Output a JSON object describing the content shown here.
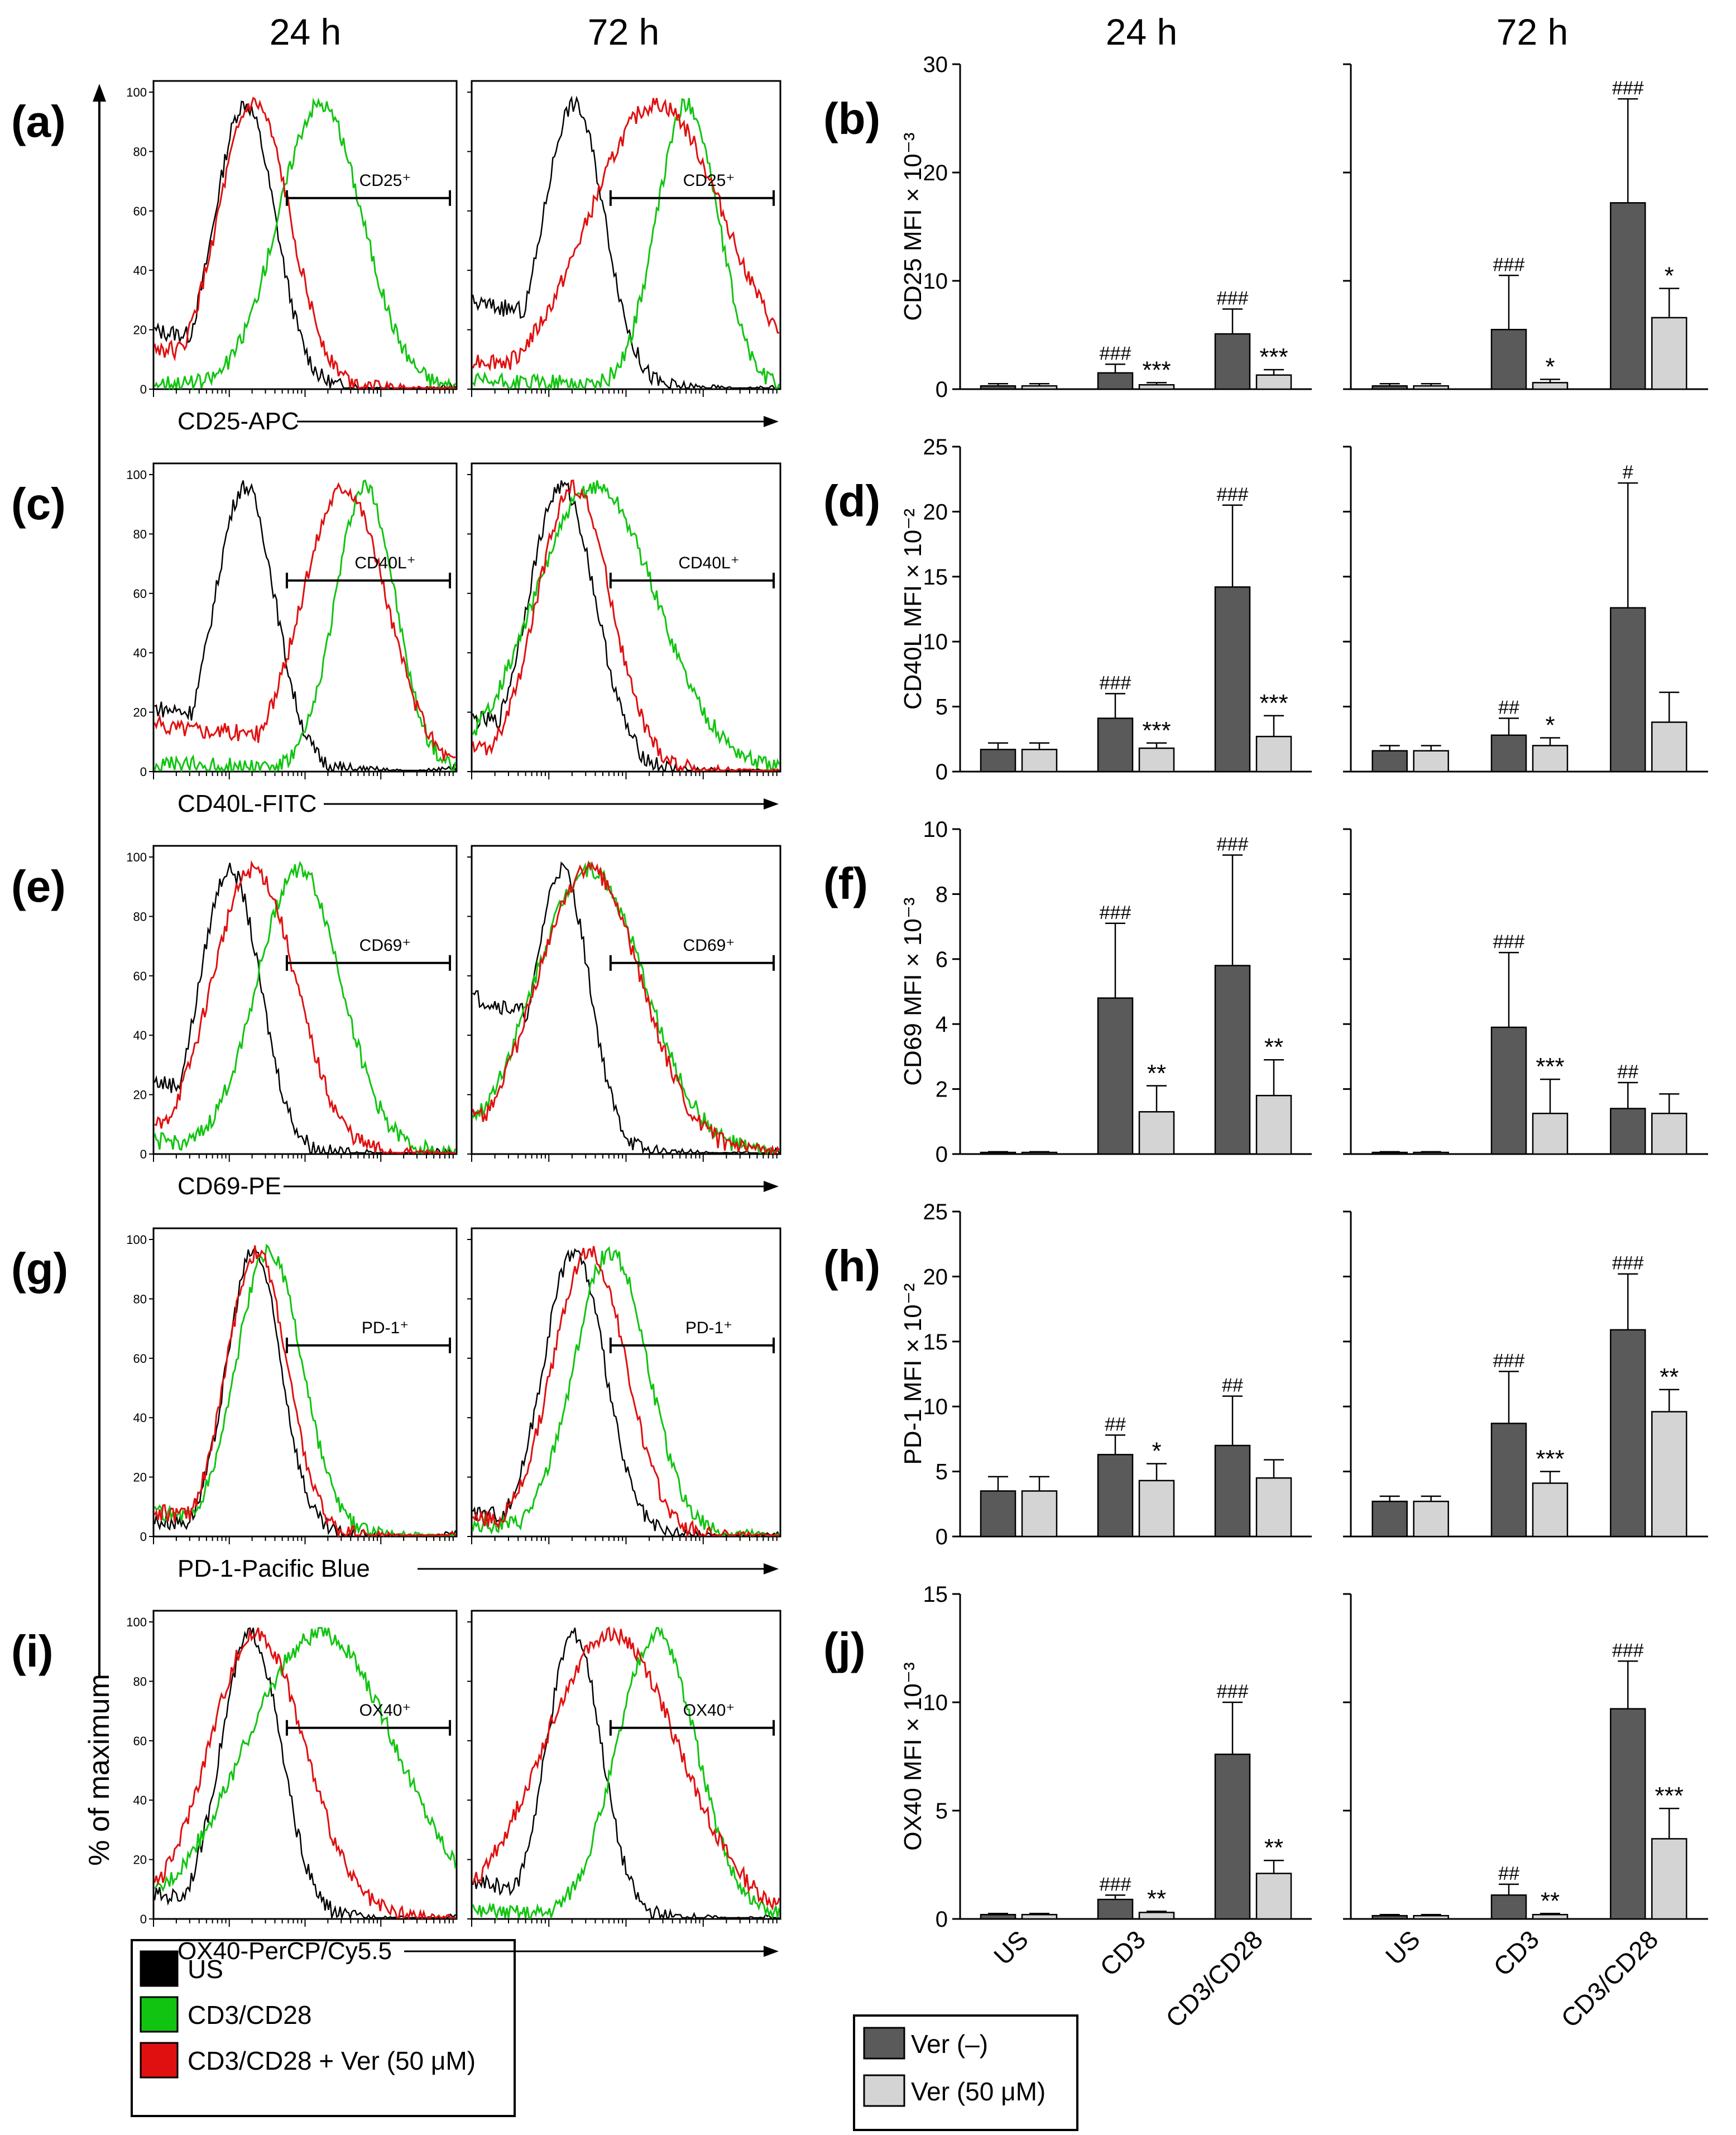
{
  "col_headers": {
    "hist_24": "24 h",
    "hist_72": "72 h",
    "bar_24": "24 h",
    "bar_72": "72 h"
  },
  "colors": {
    "us": "#000000",
    "cd3cd28": "#11c411",
    "ver": "#e01010",
    "bar_dark": "#5a5a5a",
    "bar_light": "#d4d4d4"
  },
  "hist_ylabel": "% of maximum",
  "hist_yticks": [
    "0",
    "20",
    "40",
    "60",
    "80",
    "100"
  ],
  "bar_xcats": [
    "US",
    "CD3",
    "CD3/CD28"
  ],
  "legend_hist": [
    {
      "label": "US",
      "color": "#000000"
    },
    {
      "label": "CD3/CD28",
      "color": "#11c411"
    },
    {
      "label": "CD3/CD28 + Ver (50 μM)",
      "color": "#e01010"
    }
  ],
  "legend_bar": [
    {
      "label": "Ver (–)",
      "color": "#5a5a5a"
    },
    {
      "label": "Ver (50 μM)",
      "color": "#d4d4d4"
    }
  ],
  "histograms": [
    {
      "panel": "(a)",
      "xlabel": "CD25-APC",
      "gate": [
        "CD25⁺",
        "CD25⁺"
      ]
    },
    {
      "panel": "(c)",
      "xlabel": "CD40L-FITC",
      "gate": [
        "CD40L⁺",
        "CD40L⁺"
      ]
    },
    {
      "panel": "(e)",
      "xlabel": "CD69-PE",
      "gate": [
        "CD69⁺",
        "CD69⁺"
      ]
    },
    {
      "panel": "(g)",
      "xlabel": "PD-1-Pacific Blue",
      "gate": [
        "PD-1⁺",
        "PD-1⁺"
      ]
    },
    {
      "panel": "(i)",
      "xlabel": "OX40-PerCP/Cy5.5",
      "gate": [
        "OX40⁺",
        "OX40⁺"
      ]
    }
  ],
  "chart_data": [
    {
      "type": "bar",
      "panel": "(b)",
      "ylabel": "CD25 MFI × 10⁻³",
      "ylim": [
        0,
        30
      ],
      "yticks": [
        "0",
        "10",
        "20",
        "30"
      ],
      "categories": [
        "US",
        "CD3",
        "CD3/CD28"
      ],
      "series": [
        {
          "name": "Ver (–) 24 h",
          "values": [
            0.3,
            1.5,
            5.1
          ],
          "err": [
            0.2,
            0.8,
            2.3
          ],
          "marks": [
            "",
            "###",
            "###"
          ]
        },
        {
          "name": "Ver (50 μM) 24 h",
          "values": [
            0.3,
            0.4,
            1.3
          ],
          "err": [
            0.2,
            0.2,
            0.5
          ],
          "marks": [
            "",
            "***",
            "***"
          ]
        },
        {
          "name": "Ver (–) 72 h",
          "values": [
            0.3,
            5.5,
            17.2
          ],
          "err": [
            0.2,
            5.0,
            9.6
          ],
          "marks": [
            "",
            "###",
            "###"
          ]
        },
        {
          "name": "Ver (50 μM) 72 h",
          "values": [
            0.3,
            0.6,
            6.6
          ],
          "err": [
            0.2,
            0.3,
            2.7
          ],
          "marks": [
            "",
            "*",
            "*"
          ]
        }
      ]
    },
    {
      "type": "bar",
      "panel": "(d)",
      "ylabel": "CD40L MFI × 10⁻²",
      "ylim": [
        0,
        25
      ],
      "yticks": [
        "0",
        "5",
        "10",
        "15",
        "20",
        "25"
      ],
      "categories": [
        "US",
        "CD3",
        "CD3/CD28"
      ],
      "series": [
        {
          "name": "Ver (–) 24 h",
          "values": [
            1.7,
            4.1,
            14.2
          ],
          "err": [
            0.5,
            1.9,
            6.3
          ],
          "marks": [
            "",
            "###",
            "###"
          ]
        },
        {
          "name": "Ver (50 μM) 24 h",
          "values": [
            1.7,
            1.8,
            2.7
          ],
          "err": [
            0.5,
            0.4,
            1.6
          ],
          "marks": [
            "",
            "***",
            "***"
          ]
        },
        {
          "name": "Ver (–) 72 h",
          "values": [
            1.6,
            2.8,
            12.6
          ],
          "err": [
            0.4,
            1.3,
            9.6
          ],
          "marks": [
            "",
            "##",
            "#"
          ]
        },
        {
          "name": "Ver (50 μM) 72 h",
          "values": [
            1.6,
            2.0,
            3.8
          ],
          "err": [
            0.4,
            0.6,
            2.3
          ],
          "marks": [
            "",
            "*",
            ""
          ]
        }
      ]
    },
    {
      "type": "bar",
      "panel": "(f)",
      "ylabel": "CD69 MFI × 10⁻³",
      "ylim": [
        0,
        10
      ],
      "yticks": [
        "0",
        "2",
        "4",
        "6",
        "8",
        "10"
      ],
      "categories": [
        "US",
        "CD3",
        "CD3/CD28"
      ],
      "series": [
        {
          "name": "Ver (–) 24 h",
          "values": [
            0.05,
            4.8,
            5.8
          ],
          "err": [
            0.02,
            2.3,
            3.4
          ],
          "marks": [
            "",
            "###",
            "###"
          ]
        },
        {
          "name": "Ver (50 μM) 24 h",
          "values": [
            0.05,
            1.3,
            1.8
          ],
          "err": [
            0.02,
            0.8,
            1.1
          ],
          "marks": [
            "",
            "**",
            "**"
          ]
        },
        {
          "name": "Ver (–) 72 h",
          "values": [
            0.05,
            3.9,
            1.4
          ],
          "err": [
            0.02,
            2.3,
            0.8
          ],
          "marks": [
            "",
            "###",
            "##"
          ]
        },
        {
          "name": "Ver (50 μM) 72 h",
          "values": [
            0.05,
            1.25,
            1.25
          ],
          "err": [
            0.02,
            1.05,
            0.6
          ],
          "marks": [
            "",
            "***",
            ""
          ]
        }
      ]
    },
    {
      "type": "bar",
      "panel": "(h)",
      "ylabel": "PD-1 MFI × 10⁻²",
      "ylim": [
        0,
        25
      ],
      "yticks": [
        "0",
        "5",
        "10",
        "15",
        "20",
        "25"
      ],
      "categories": [
        "US",
        "CD3",
        "CD3/CD28"
      ],
      "series": [
        {
          "name": "Ver (–) 24 h",
          "values": [
            3.5,
            6.3,
            7.0
          ],
          "err": [
            1.1,
            1.5,
            3.8
          ],
          "marks": [
            "",
            "##",
            "##"
          ]
        },
        {
          "name": "Ver (50 μM) 24 h",
          "values": [
            3.5,
            4.3,
            4.5
          ],
          "err": [
            1.1,
            1.3,
            1.4
          ],
          "marks": [
            "",
            "*",
            ""
          ]
        },
        {
          "name": "Ver (–) 72 h",
          "values": [
            2.7,
            8.7,
            15.9
          ],
          "err": [
            0.4,
            4.0,
            4.3
          ],
          "marks": [
            "",
            "###",
            "###"
          ]
        },
        {
          "name": "Ver (50 μM) 72 h",
          "values": [
            2.7,
            4.1,
            9.6
          ],
          "err": [
            0.4,
            0.9,
            1.7
          ],
          "marks": [
            "",
            "***",
            "**"
          ]
        }
      ]
    },
    {
      "type": "bar",
      "panel": "(j)",
      "ylabel": "OX40 MFI × 10⁻³",
      "ylim": [
        0,
        15
      ],
      "yticks": [
        "0",
        "5",
        "10",
        "15"
      ],
      "categories": [
        "US",
        "CD3",
        "CD3/CD28"
      ],
      "series": [
        {
          "name": "Ver (–) 24 h",
          "values": [
            0.2,
            0.9,
            7.6
          ],
          "err": [
            0.05,
            0.2,
            2.4
          ],
          "marks": [
            "",
            "###",
            "###"
          ]
        },
        {
          "name": "Ver (50 μM) 24 h",
          "values": [
            0.2,
            0.3,
            2.1
          ],
          "err": [
            0.05,
            0.05,
            0.6
          ],
          "marks": [
            "",
            "**",
            "**"
          ]
        },
        {
          "name": "Ver (–) 72 h",
          "values": [
            0.15,
            1.1,
            9.7
          ],
          "err": [
            0.05,
            0.5,
            2.2
          ],
          "marks": [
            "",
            "##",
            "###"
          ]
        },
        {
          "name": "Ver (50 μM) 72 h",
          "values": [
            0.15,
            0.2,
            3.7
          ],
          "err": [
            0.05,
            0.05,
            1.4
          ],
          "marks": [
            "",
            "**",
            "***"
          ]
        }
      ]
    }
  ]
}
